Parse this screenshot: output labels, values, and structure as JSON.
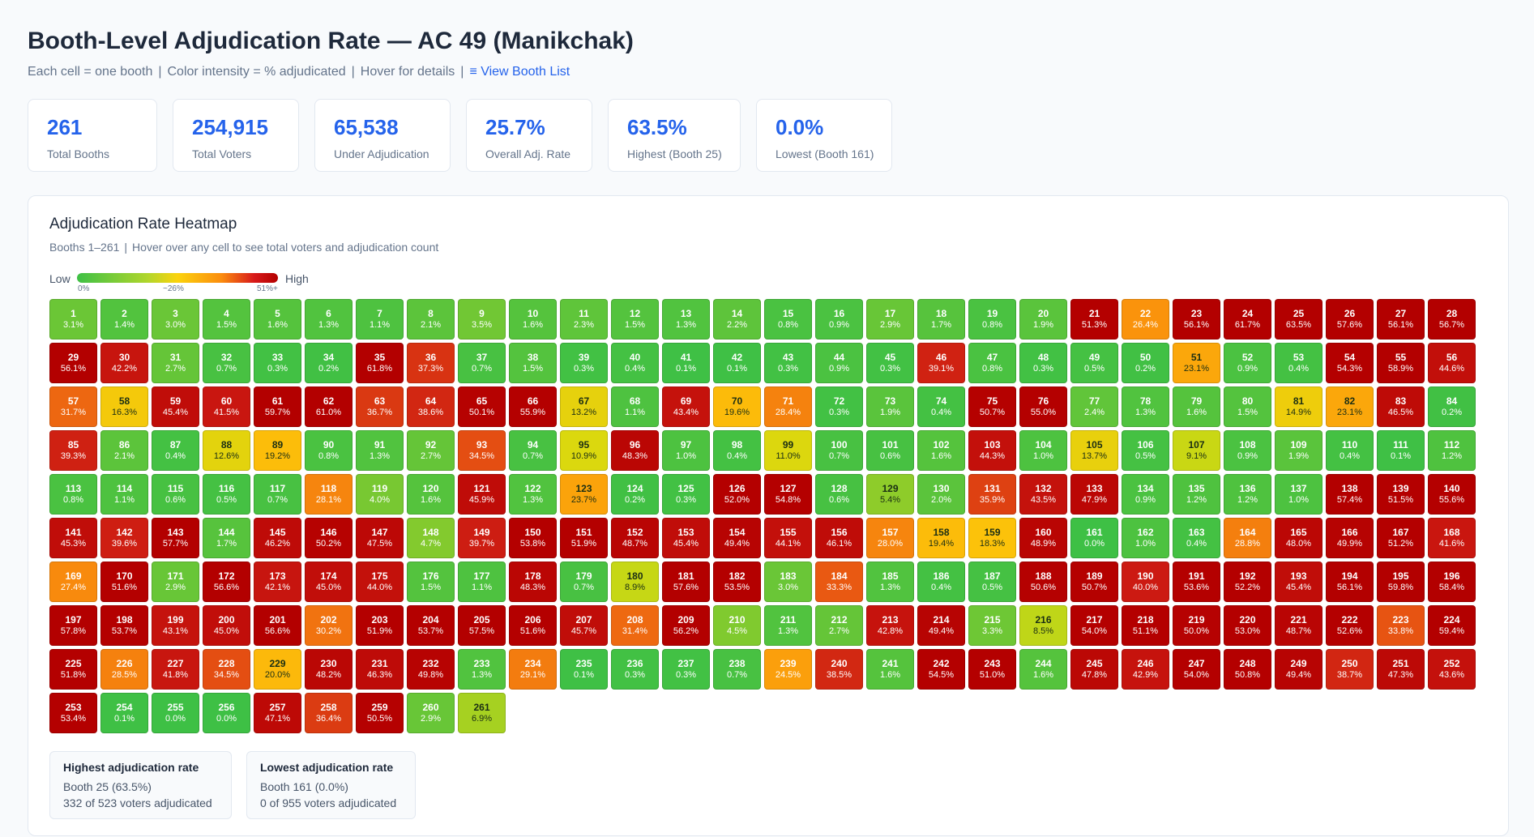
{
  "header": {
    "title": "Booth-Level Adjudication Rate — AC 49 (Manikchak)",
    "sub_cells": "Each cell = one booth",
    "sub_color": "Color intensity = % adjudicated",
    "sub_hover": "Hover for details",
    "sub_sep": "|",
    "view_booth_list": "≡ View Booth List"
  },
  "stats": [
    {
      "value": "261",
      "label": "Total Booths"
    },
    {
      "value": "254,915",
      "label": "Total Voters"
    },
    {
      "value": "65,538",
      "label": "Under Adjudication"
    },
    {
      "value": "25.7%",
      "label": "Overall Adj. Rate"
    },
    {
      "value": "63.5%",
      "label": "Highest (Booth 25)"
    },
    {
      "value": "0.0%",
      "label": "Lowest (Booth 161)"
    }
  ],
  "heatmap": {
    "title": "Adjudication Rate Heatmap",
    "sub_range": "Booths 1–261",
    "sub_hint": "Hover over any cell to see total voters and adjudication count",
    "legend_low": "Low",
    "legend_high": "High",
    "legend_tick_min": "0%",
    "legend_tick_mid": "~26%",
    "legend_tick_max": "51%+",
    "colors": {
      "low": "#3ec045",
      "mid": "#fbd30d",
      "high": "#b30000"
    }
  },
  "notes": {
    "highest": {
      "title": "Highest adjudication rate",
      "line1": "Booth 25 (63.5%)",
      "line2": "332 of 523 voters adjudicated"
    },
    "lowest": {
      "title": "Lowest adjudication rate",
      "line1": "Booth 161 (0.0%)",
      "line2": "0 of 955 voters adjudicated"
    }
  },
  "chart_data": {
    "type": "heatmap",
    "title": "Adjudication Rate Heatmap",
    "categories_label": "Booth",
    "booths": [
      1,
      2,
      3,
      4,
      5,
      6,
      7,
      8,
      9,
      10,
      11,
      12,
      13,
      14,
      15,
      16,
      17,
      18,
      19,
      20,
      21,
      22,
      23,
      24,
      25,
      26,
      27,
      28,
      29,
      30,
      31,
      32,
      33,
      34,
      35,
      36,
      37,
      38,
      39,
      40,
      41,
      42,
      43,
      44,
      45,
      46,
      47,
      48,
      49,
      50,
      51,
      52,
      53,
      54,
      55,
      56,
      57,
      58,
      59,
      60,
      61,
      62,
      63,
      64,
      65,
      66,
      67,
      68,
      69,
      70,
      71,
      72,
      73,
      74,
      75,
      76,
      77,
      78,
      79,
      80,
      81,
      82,
      83,
      84,
      85,
      86,
      87,
      88,
      89,
      90,
      91,
      92,
      93,
      94,
      95,
      96,
      97,
      98,
      99,
      100,
      101,
      102,
      103,
      104,
      105,
      106,
      107,
      108,
      109,
      110,
      111,
      112,
      113,
      114,
      115,
      116,
      117,
      118,
      119,
      120,
      121,
      122,
      123,
      124,
      125,
      126,
      127,
      128,
      129,
      130,
      131,
      132,
      133,
      134,
      135,
      136,
      137,
      138,
      139,
      140,
      141,
      142,
      143,
      144,
      145,
      146,
      147,
      148,
      149,
      150,
      151,
      152,
      153,
      154,
      155,
      156,
      157,
      158,
      159,
      160,
      161,
      162,
      163,
      164,
      165,
      166,
      167,
      168,
      169,
      170,
      171,
      172,
      173,
      174,
      175,
      176,
      177,
      178,
      179,
      180,
      181,
      182,
      183,
      184,
      185,
      186,
      187,
      188,
      189,
      190,
      191,
      192,
      193,
      194,
      195,
      196,
      197,
      198,
      199,
      200,
      201,
      202,
      203,
      204,
      205,
      206,
      207,
      208,
      209,
      210,
      211,
      212,
      213,
      214,
      215,
      216,
      217,
      218,
      219,
      220,
      221,
      222,
      223,
      224,
      225,
      226,
      227,
      228,
      229,
      230,
      231,
      232,
      233,
      234,
      235,
      236,
      237,
      238,
      239,
      240,
      241,
      242,
      243,
      244,
      245,
      246,
      247,
      248,
      249,
      250,
      251,
      252,
      253,
      254,
      255,
      256,
      257,
      258,
      259,
      260,
      261
    ],
    "values": [
      "3.1%",
      "1.4%",
      "3.0%",
      "1.5%",
      "1.6%",
      "1.3%",
      "1.1%",
      "2.1%",
      "3.5%",
      "1.6%",
      "2.3%",
      "1.5%",
      "1.3%",
      "2.2%",
      "0.8%",
      "0.9%",
      "2.9%",
      "1.7%",
      "0.8%",
      "1.9%",
      "51.3%",
      "26.4%",
      "56.1%",
      "61.7%",
      "63.5%",
      "57.6%",
      "56.1%",
      "56.7%",
      "56.1%",
      "42.2%",
      "2.7%",
      "0.7%",
      "0.3%",
      "0.2%",
      "61.8%",
      "37.3%",
      "0.7%",
      "1.5%",
      "0.3%",
      "0.4%",
      "0.1%",
      "0.1%",
      "0.3%",
      "0.9%",
      "0.3%",
      "39.1%",
      "0.8%",
      "0.3%",
      "0.5%",
      "0.2%",
      "23.1%",
      "0.9%",
      "0.4%",
      "54.3%",
      "58.9%",
      "44.6%",
      "31.7%",
      "16.3%",
      "45.4%",
      "41.5%",
      "59.7%",
      "61.0%",
      "36.7%",
      "38.6%",
      "50.1%",
      "55.9%",
      "13.2%",
      "1.1%",
      "43.4%",
      "19.6%",
      "28.4%",
      "0.3%",
      "1.9%",
      "0.4%",
      "50.7%",
      "55.0%",
      "2.4%",
      "1.3%",
      "1.6%",
      "1.5%",
      "14.9%",
      "23.1%",
      "46.5%",
      "0.2%",
      "39.3%",
      "2.1%",
      "0.4%",
      "12.6%",
      "19.2%",
      "0.8%",
      "1.3%",
      "2.7%",
      "34.5%",
      "0.7%",
      "10.9%",
      "48.3%",
      "1.0%",
      "0.4%",
      "11.0%",
      "0.7%",
      "0.6%",
      "1.6%",
      "44.3%",
      "1.0%",
      "13.7%",
      "0.5%",
      "9.1%",
      "0.9%",
      "1.9%",
      "0.4%",
      "0.1%",
      "1.2%",
      "0.8%",
      "1.1%",
      "0.6%",
      "0.5%",
      "0.7%",
      "28.1%",
      "4.0%",
      "1.6%",
      "45.9%",
      "1.3%",
      "23.7%",
      "0.2%",
      "0.3%",
      "52.0%",
      "54.8%",
      "0.6%",
      "5.4%",
      "2.0%",
      "35.9%",
      "43.5%",
      "47.9%",
      "0.9%",
      "1.2%",
      "1.2%",
      "1.0%",
      "57.4%",
      "51.5%",
      "55.6%",
      "45.3%",
      "39.6%",
      "57.7%",
      "1.7%",
      "46.2%",
      "50.2%",
      "47.5%",
      "4.7%",
      "39.7%",
      "53.8%",
      "51.9%",
      "48.7%",
      "45.4%",
      "49.4%",
      "44.1%",
      "46.1%",
      "28.0%",
      "19.4%",
      "18.3%",
      "48.9%",
      "0.0%",
      "1.0%",
      "0.4%",
      "28.8%",
      "48.0%",
      "49.9%",
      "51.2%",
      "41.6%",
      "27.4%",
      "51.6%",
      "2.9%",
      "56.6%",
      "42.1%",
      "45.0%",
      "44.0%",
      "1.5%",
      "1.1%",
      "48.3%",
      "0.7%",
      "8.9%",
      "57.6%",
      "53.5%",
      "3.0%",
      "33.3%",
      "1.3%",
      "0.4%",
      "0.5%",
      "50.6%",
      "50.7%",
      "40.0%",
      "53.6%",
      "52.2%",
      "45.4%",
      "56.1%",
      "59.8%",
      "58.4%",
      "57.8%",
      "53.7%",
      "43.1%",
      "45.0%",
      "56.6%",
      "30.2%",
      "51.9%",
      "53.7%",
      "57.5%",
      "51.6%",
      "45.7%",
      "31.4%",
      "56.2%",
      "4.5%",
      "1.3%",
      "2.7%",
      "42.8%",
      "49.4%",
      "3.3%",
      "8.5%",
      "54.0%",
      "51.1%",
      "50.0%",
      "53.0%",
      "48.7%",
      "52.6%",
      "33.8%",
      "59.4%",
      "51.8%",
      "28.5%",
      "41.8%",
      "34.5%",
      "20.0%",
      "48.2%",
      "46.3%",
      "49.8%",
      "1.3%",
      "29.1%",
      "0.1%",
      "0.3%",
      "0.3%",
      "0.7%",
      "24.5%",
      "38.5%",
      "1.6%",
      "54.5%",
      "51.0%",
      "1.6%",
      "47.8%",
      "42.9%",
      "54.0%",
      "50.8%",
      "49.4%",
      "38.7%",
      "47.3%",
      "43.6%",
      "53.4%",
      "0.1%",
      "0.0%",
      "0.0%",
      "47.1%",
      "36.4%",
      "50.5%",
      "2.9%",
      "6.9%"
    ],
    "color_scale": {
      "min": 0,
      "mid": 26,
      "max": 51
    }
  }
}
